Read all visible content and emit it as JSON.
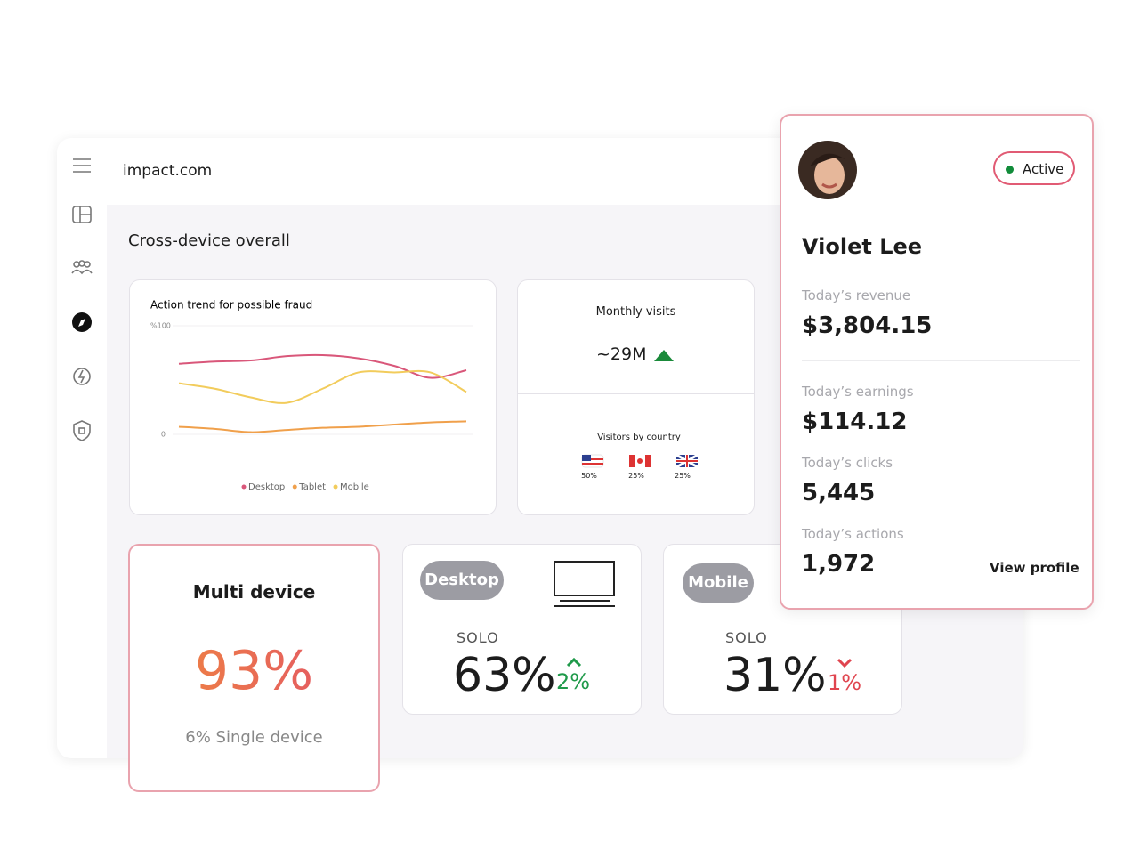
{
  "header": {
    "site": "impact.com"
  },
  "section_title": "Cross-device overall",
  "chart_data": {
    "type": "line",
    "title": "Action trend for possible fraud",
    "categories": [
      null,
      null,
      null,
      null,
      null,
      null,
      null,
      null,
      null
    ],
    "ylim": [
      0,
      100
    ],
    "yticks": [
      0,
      {
        "value": 100,
        "label": "%100"
      }
    ],
    "grid": true,
    "series": [
      {
        "name": "Desktop",
        "color": "#d9577a",
        "values": [
          65,
          67,
          68,
          72,
          73,
          70,
          63,
          52,
          59
        ]
      },
      {
        "name": "Tablet",
        "color": "#f0a04b",
        "values": [
          7,
          5,
          2,
          4,
          6,
          7,
          9,
          11,
          12
        ]
      },
      {
        "name": "Mobile",
        "color": "#f2cc5c",
        "values": [
          47,
          42,
          34,
          29,
          42,
          57,
          57,
          57,
          39
        ]
      }
    ]
  },
  "visits": {
    "title": "Monthly visits",
    "value": "~29M"
  },
  "countries": {
    "title": "Visitors by country",
    "shares": [
      "50%",
      "25%",
      "25%"
    ]
  },
  "multi_device": {
    "title": "Multi device",
    "value": "93%",
    "note": "6% Single device"
  },
  "devices": [
    {
      "label": "Desktop",
      "kind": "SOLO",
      "value": "63%",
      "change": "2%",
      "trend": "up"
    },
    {
      "label": "Mobile",
      "kind": "SOLO",
      "value": "31%",
      "change": "1%",
      "trend": "down"
    }
  ],
  "profile": {
    "name": "Violet Lee",
    "status": "Active",
    "stats": [
      {
        "label": "Today’s revenue",
        "value": "$3,804.15"
      },
      {
        "label": "Today’s earnings",
        "value": "$114.12"
      },
      {
        "label": "Today’s clicks",
        "value": "5,445"
      },
      {
        "label": "Today’s actions",
        "value": "1,972"
      }
    ],
    "link": "View profile"
  }
}
